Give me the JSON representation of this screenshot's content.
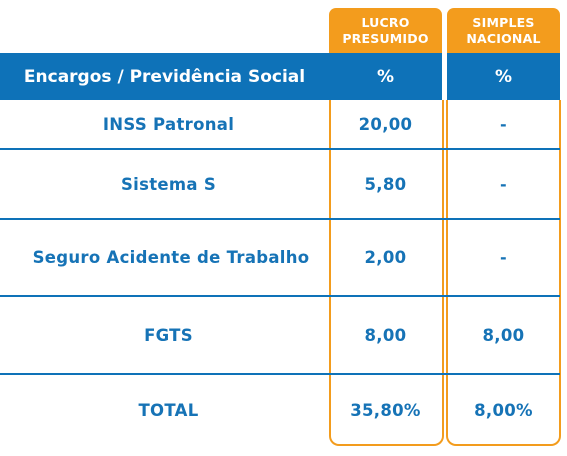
{
  "columns": {
    "lucro_presumido": [
      "LUCRO",
      "PRESUMIDO"
    ],
    "simples_nacional": [
      "SIMPLES",
      "NACIONAL"
    ]
  },
  "header": {
    "label": "Encargos / Previdência Social",
    "col1": "%",
    "col2": "%"
  },
  "rows": [
    {
      "label": "INSS Patronal",
      "lucro": "20,00",
      "simples": "-"
    },
    {
      "label": "Sistema S",
      "lucro": "5,80",
      "simples": "-"
    },
    {
      "label": "Seguro Acidente de Trabalho",
      "lucro": "2,00",
      "simples": "-"
    },
    {
      "label": "FGTS",
      "lucro": "8,00",
      "simples": "8,00"
    },
    {
      "label": "TOTAL",
      "lucro": "35,80%",
      "simples": "8,00%"
    }
  ],
  "colors": {
    "orange": "#f39c1d",
    "blue": "#0e72b8"
  }
}
